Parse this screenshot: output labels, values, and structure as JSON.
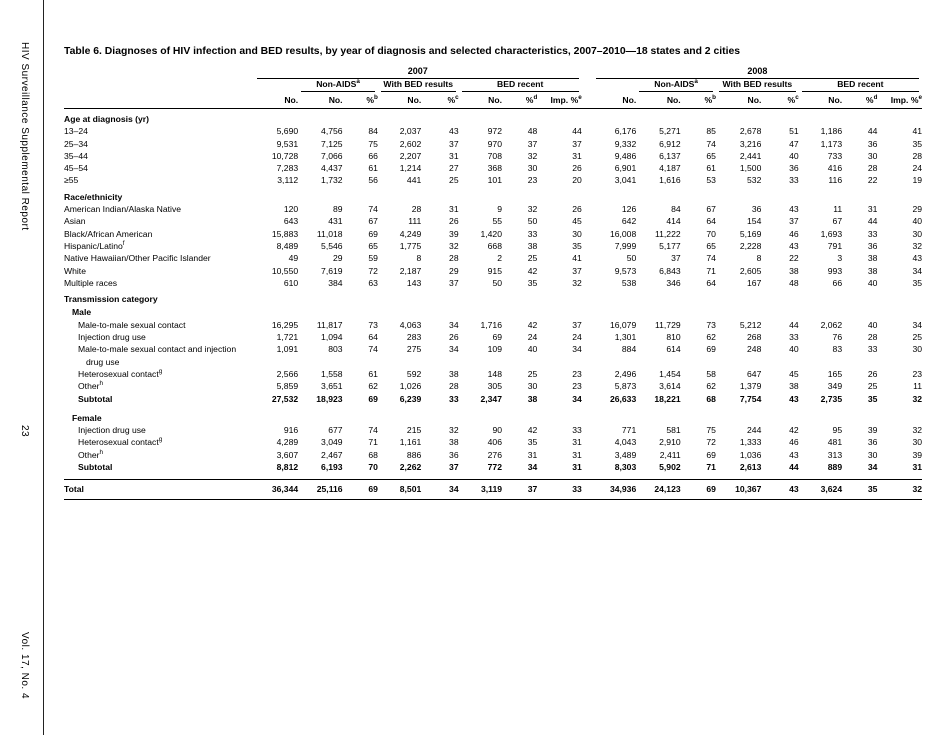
{
  "sidebar": {
    "journal_title": "HIV Surveillance Supplemental Report",
    "page_number": "23",
    "volume": "Vol. 17, No. 4"
  },
  "table": {
    "title": "Table 6.  Diagnoses of HIV infection and BED results, by year of diagnosis and selected characteristics, 2007–2010—18 states and 2 cities",
    "year_groups": [
      "2007",
      "2008"
    ],
    "col_groups": [
      {
        "label": "Non-AIDS",
        "sup": "a",
        "span": 2
      },
      {
        "label": "With BED results",
        "sup": "",
        "span": 2
      },
      {
        "label": "BED recent",
        "sup": "",
        "span": 3
      }
    ],
    "columns": [
      {
        "label": "No.",
        "sup": ""
      },
      {
        "label": "No.",
        "sup": ""
      },
      {
        "label": "%",
        "sup": "b"
      },
      {
        "label": "No.",
        "sup": ""
      },
      {
        "label": "%",
        "sup": "c"
      },
      {
        "label": "No.",
        "sup": ""
      },
      {
        "label": "%",
        "sup": "d"
      },
      {
        "label": "Imp. %",
        "sup": "e"
      }
    ],
    "rows": [
      {
        "t": "section",
        "label": "Age at diagnosis (yr)"
      },
      {
        "t": "d",
        "label": "13–24",
        "v": [
          "5,690",
          "4,756",
          "84",
          "2,037",
          "43",
          "972",
          "48",
          "44",
          "6,176",
          "5,271",
          "85",
          "2,678",
          "51",
          "1,186",
          "44",
          "41"
        ]
      },
      {
        "t": "d",
        "label": "25–34",
        "v": [
          "9,531",
          "7,125",
          "75",
          "2,602",
          "37",
          "970",
          "37",
          "37",
          "9,332",
          "6,912",
          "74",
          "3,216",
          "47",
          "1,173",
          "36",
          "35"
        ]
      },
      {
        "t": "d",
        "label": "35–44",
        "v": [
          "10,728",
          "7,066",
          "66",
          "2,207",
          "31",
          "708",
          "32",
          "31",
          "9,486",
          "6,137",
          "65",
          "2,441",
          "40",
          "733",
          "30",
          "28"
        ]
      },
      {
        "t": "d",
        "label": "45–54",
        "v": [
          "7,283",
          "4,437",
          "61",
          "1,214",
          "27",
          "368",
          "30",
          "26",
          "6,901",
          "4,187",
          "61",
          "1,500",
          "36",
          "416",
          "28",
          "24"
        ]
      },
      {
        "t": "d",
        "label": "≥55",
        "v": [
          "3,112",
          "1,732",
          "56",
          "441",
          "25",
          "101",
          "23",
          "20",
          "3,041",
          "1,616",
          "53",
          "532",
          "33",
          "116",
          "22",
          "19"
        ]
      },
      {
        "t": "section",
        "label": "Race/ethnicity"
      },
      {
        "t": "d",
        "label": "American Indian/Alaska Native",
        "v": [
          "120",
          "89",
          "74",
          "28",
          "31",
          "9",
          "32",
          "26",
          "126",
          "84",
          "67",
          "36",
          "43",
          "11",
          "31",
          "29"
        ]
      },
      {
        "t": "d",
        "label": "Asian",
        "v": [
          "643",
          "431",
          "67",
          "111",
          "26",
          "55",
          "50",
          "45",
          "642",
          "414",
          "64",
          "154",
          "37",
          "67",
          "44",
          "40"
        ]
      },
      {
        "t": "d",
        "label": "Black/African American",
        "v": [
          "15,883",
          "11,018",
          "69",
          "4,249",
          "39",
          "1,420",
          "33",
          "30",
          "16,008",
          "11,222",
          "70",
          "5,169",
          "46",
          "1,693",
          "33",
          "30"
        ]
      },
      {
        "t": "d",
        "label": "Hispanic/Latino",
        "sup": "f",
        "v": [
          "8,489",
          "5,546",
          "65",
          "1,775",
          "32",
          "668",
          "38",
          "35",
          "7,999",
          "5,177",
          "65",
          "2,228",
          "43",
          "791",
          "36",
          "32"
        ]
      },
      {
        "t": "d",
        "label": "Native Hawaiian/Other Pacific Islander",
        "v": [
          "49",
          "29",
          "59",
          "8",
          "28",
          "2",
          "25",
          "41",
          "50",
          "37",
          "74",
          "8",
          "22",
          "3",
          "38",
          "43"
        ]
      },
      {
        "t": "d",
        "label": "White",
        "v": [
          "10,550",
          "7,619",
          "72",
          "2,187",
          "29",
          "915",
          "42",
          "37",
          "9,573",
          "6,843",
          "71",
          "2,605",
          "38",
          "993",
          "38",
          "34"
        ]
      },
      {
        "t": "d",
        "label": "Multiple races",
        "v": [
          "610",
          "384",
          "63",
          "143",
          "37",
          "50",
          "35",
          "32",
          "538",
          "346",
          "64",
          "167",
          "48",
          "66",
          "40",
          "35"
        ]
      },
      {
        "t": "section",
        "label": "Transmission category"
      },
      {
        "t": "sub",
        "label": "Male"
      },
      {
        "t": "d",
        "indent": 2,
        "label": "Male-to-male sexual contact",
        "v": [
          "16,295",
          "11,817",
          "73",
          "4,063",
          "34",
          "1,716",
          "42",
          "37",
          "16,079",
          "11,729",
          "73",
          "5,212",
          "44",
          "2,062",
          "40",
          "34"
        ]
      },
      {
        "t": "d",
        "indent": 2,
        "label": "Injection drug use",
        "v": [
          "1,721",
          "1,094",
          "64",
          "283",
          "26",
          "69",
          "24",
          "24",
          "1,301",
          "810",
          "62",
          "268",
          "33",
          "76",
          "28",
          "25"
        ]
      },
      {
        "t": "d",
        "indent": 2,
        "label": "Male-to-male sexual contact and injection",
        "label2": "drug use",
        "v": [
          "1,091",
          "803",
          "74",
          "275",
          "34",
          "109",
          "40",
          "34",
          "884",
          "614",
          "69",
          "248",
          "40",
          "83",
          "33",
          "30"
        ]
      },
      {
        "t": "d",
        "indent": 2,
        "label": "Heterosexual contact",
        "sup": "g",
        "v": [
          "2,566",
          "1,558",
          "61",
          "592",
          "38",
          "148",
          "25",
          "23",
          "2,496",
          "1,454",
          "58",
          "647",
          "45",
          "165",
          "26",
          "23"
        ]
      },
      {
        "t": "d",
        "indent": 2,
        "label": "Other",
        "sup": "h",
        "v": [
          "5,859",
          "3,651",
          "62",
          "1,026",
          "28",
          "305",
          "30",
          "23",
          "5,873",
          "3,614",
          "62",
          "1,379",
          "38",
          "349",
          "25",
          "11"
        ]
      },
      {
        "t": "d",
        "indent": 2,
        "bold": true,
        "label": "Subtotal",
        "v": [
          "27,532",
          "18,923",
          "69",
          "6,239",
          "33",
          "2,347",
          "38",
          "34",
          "26,633",
          "18,221",
          "68",
          "7,754",
          "43",
          "2,735",
          "35",
          "32"
        ]
      },
      {
        "t": "sub",
        "label": "Female",
        "gap": true
      },
      {
        "t": "d",
        "indent": 2,
        "label": "Injection drug use",
        "v": [
          "916",
          "677",
          "74",
          "215",
          "32",
          "90",
          "42",
          "33",
          "771",
          "581",
          "75",
          "244",
          "42",
          "95",
          "39",
          "32"
        ]
      },
      {
        "t": "d",
        "indent": 2,
        "label": "Heterosexual contact",
        "sup": "g",
        "v": [
          "4,289",
          "3,049",
          "71",
          "1,161",
          "38",
          "406",
          "35",
          "31",
          "4,043",
          "2,910",
          "72",
          "1,333",
          "46",
          "481",
          "36",
          "30"
        ]
      },
      {
        "t": "d",
        "indent": 2,
        "label": "Other",
        "sup": "h",
        "v": [
          "3,607",
          "2,467",
          "68",
          "886",
          "36",
          "276",
          "31",
          "31",
          "3,489",
          "2,411",
          "69",
          "1,036",
          "43",
          "313",
          "30",
          "39"
        ]
      },
      {
        "t": "d",
        "indent": 2,
        "bold": true,
        "label": "Subtotal",
        "v": [
          "8,812",
          "6,193",
          "70",
          "2,262",
          "37",
          "772",
          "34",
          "31",
          "8,303",
          "5,902",
          "71",
          "2,613",
          "44",
          "889",
          "34",
          "31"
        ]
      }
    ],
    "total_row": {
      "label": "Total",
      "v": [
        "36,344",
        "25,116",
        "69",
        "8,501",
        "34",
        "3,119",
        "37",
        "33",
        "34,936",
        "24,123",
        "69",
        "10,367",
        "43",
        "3,624",
        "35",
        "32"
      ]
    }
  }
}
